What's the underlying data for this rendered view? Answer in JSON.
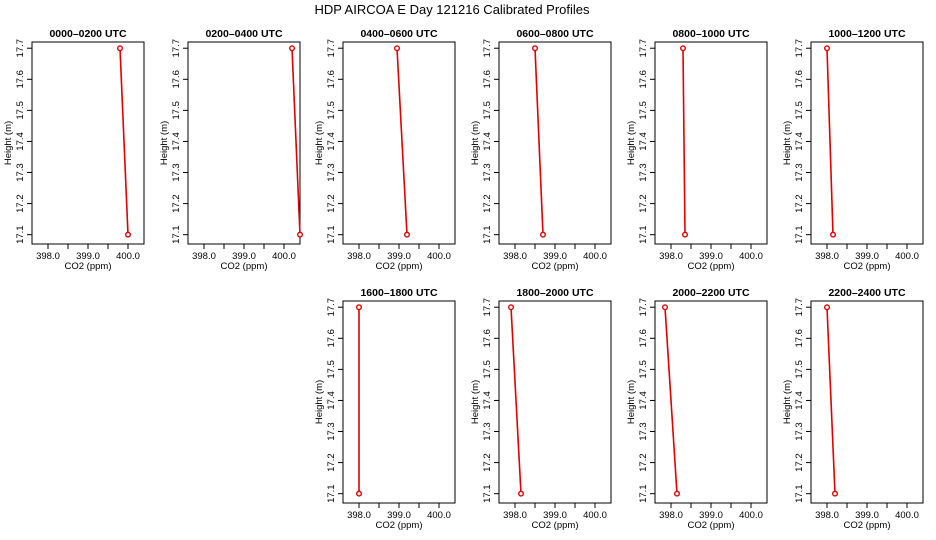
{
  "title": "HDP AIRCOA E  Day 121216  Calibrated Profiles",
  "chart_data": [
    {
      "type": "line",
      "title": "0000–0200 UTC",
      "xlabel": "CO2 (ppm)",
      "ylabel": "Height (m)",
      "xlim": [
        397.6,
        400.4
      ],
      "ylim": [
        17.07,
        17.72
      ],
      "xticks": [
        "398.0",
        "399.0",
        "400.0"
      ],
      "yticks": [
        "17.1",
        "17.2",
        "17.3",
        "17.4",
        "17.5",
        "17.6",
        "17.7"
      ],
      "points": [
        {
          "x": 399.8,
          "y": 17.7
        },
        {
          "x": 400.0,
          "y": 17.1
        }
      ]
    },
    {
      "type": "line",
      "title": "0200–0400 UTC",
      "xlabel": "CO2 (ppm)",
      "ylabel": "Height (m)",
      "xlim": [
        397.6,
        400.4
      ],
      "ylim": [
        17.07,
        17.72
      ],
      "xticks": [
        "398.0",
        "399.0",
        "400.0"
      ],
      "yticks": [
        "17.1",
        "17.2",
        "17.3",
        "17.4",
        "17.5",
        "17.6",
        "17.7"
      ],
      "points": [
        {
          "x": 400.2,
          "y": 17.7
        },
        {
          "x": 400.4,
          "y": 17.1
        }
      ]
    },
    {
      "type": "line",
      "title": "0400–0600 UTC",
      "xlabel": "CO2 (ppm)",
      "ylabel": "Height (m)",
      "xlim": [
        397.6,
        400.4
      ],
      "ylim": [
        17.07,
        17.72
      ],
      "xticks": [
        "398.0",
        "399.0",
        "400.0"
      ],
      "yticks": [
        "17.1",
        "17.2",
        "17.3",
        "17.4",
        "17.5",
        "17.6",
        "17.7"
      ],
      "points": [
        {
          "x": 398.95,
          "y": 17.7
        },
        {
          "x": 399.2,
          "y": 17.1
        }
      ]
    },
    {
      "type": "line",
      "title": "0600–0800 UTC",
      "xlabel": "CO2 (ppm)",
      "ylabel": "Height (m)",
      "xlim": [
        397.6,
        400.4
      ],
      "ylim": [
        17.07,
        17.72
      ],
      "xticks": [
        "398.0",
        "399.0",
        "400.0"
      ],
      "yticks": [
        "17.1",
        "17.2",
        "17.3",
        "17.4",
        "17.5",
        "17.6",
        "17.7"
      ],
      "points": [
        {
          "x": 398.5,
          "y": 17.7
        },
        {
          "x": 398.7,
          "y": 17.1
        }
      ]
    },
    {
      "type": "line",
      "title": "0800–1000 UTC",
      "xlabel": "CO2 (ppm)",
      "ylabel": "Height (m)",
      "xlim": [
        397.6,
        400.4
      ],
      "ylim": [
        17.07,
        17.72
      ],
      "xticks": [
        "398.0",
        "399.0",
        "400.0"
      ],
      "yticks": [
        "17.1",
        "17.2",
        "17.3",
        "17.4",
        "17.5",
        "17.6",
        "17.7"
      ],
      "points": [
        {
          "x": 398.3,
          "y": 17.7
        },
        {
          "x": 398.35,
          "y": 17.1
        }
      ]
    },
    {
      "type": "line",
      "title": "1000–1200 UTC",
      "xlabel": "CO2 (ppm)",
      "ylabel": "Height (m)",
      "xlim": [
        397.6,
        400.4
      ],
      "ylim": [
        17.07,
        17.72
      ],
      "xticks": [
        "398.0",
        "399.0",
        "400.0"
      ],
      "yticks": [
        "17.1",
        "17.2",
        "17.3",
        "17.4",
        "17.5",
        "17.6",
        "17.7"
      ],
      "points": [
        {
          "x": 398.0,
          "y": 17.7
        },
        {
          "x": 398.15,
          "y": 17.1
        }
      ]
    },
    {
      "type": "line",
      "title": "1600–1800 UTC",
      "xlabel": "CO2 (ppm)",
      "ylabel": "Height (m)",
      "xlim": [
        397.6,
        400.4
      ],
      "ylim": [
        17.07,
        17.72
      ],
      "xticks": [
        "398.0",
        "399.0",
        "400.0"
      ],
      "yticks": [
        "17.1",
        "17.2",
        "17.3",
        "17.4",
        "17.5",
        "17.6",
        "17.7"
      ],
      "points": [
        {
          "x": 398.0,
          "y": 17.7
        },
        {
          "x": 398.0,
          "y": 17.1
        }
      ]
    },
    {
      "type": "line",
      "title": "1800–2000 UTC",
      "xlabel": "CO2 (ppm)",
      "ylabel": "Height (m)",
      "xlim": [
        397.6,
        400.4
      ],
      "ylim": [
        17.07,
        17.72
      ],
      "xticks": [
        "398.0",
        "399.0",
        "400.0"
      ],
      "yticks": [
        "17.1",
        "17.2",
        "17.3",
        "17.4",
        "17.5",
        "17.6",
        "17.7"
      ],
      "points": [
        {
          "x": 397.9,
          "y": 17.7
        },
        {
          "x": 398.15,
          "y": 17.1
        }
      ]
    },
    {
      "type": "line",
      "title": "2000–2200 UTC",
      "xlabel": "CO2 (ppm)",
      "ylabel": "Height (m)",
      "xlim": [
        397.6,
        400.4
      ],
      "ylim": [
        17.07,
        17.72
      ],
      "xticks": [
        "398.0",
        "399.0",
        "400.0"
      ],
      "yticks": [
        "17.1",
        "17.2",
        "17.3",
        "17.4",
        "17.5",
        "17.6",
        "17.7"
      ],
      "points": [
        {
          "x": 397.85,
          "y": 17.7
        },
        {
          "x": 398.15,
          "y": 17.1
        }
      ]
    },
    {
      "type": "line",
      "title": "2200–2400 UTC",
      "xlabel": "CO2 (ppm)",
      "ylabel": "Height (m)",
      "xlim": [
        397.6,
        400.4
      ],
      "ylim": [
        17.07,
        17.72
      ],
      "xticks": [
        "398.0",
        "399.0",
        "400.0"
      ],
      "yticks": [
        "17.1",
        "17.2",
        "17.3",
        "17.4",
        "17.5",
        "17.6",
        "17.7"
      ],
      "points": [
        {
          "x": 398.0,
          "y": 17.7
        },
        {
          "x": 398.2,
          "y": 17.1
        }
      ]
    }
  ]
}
